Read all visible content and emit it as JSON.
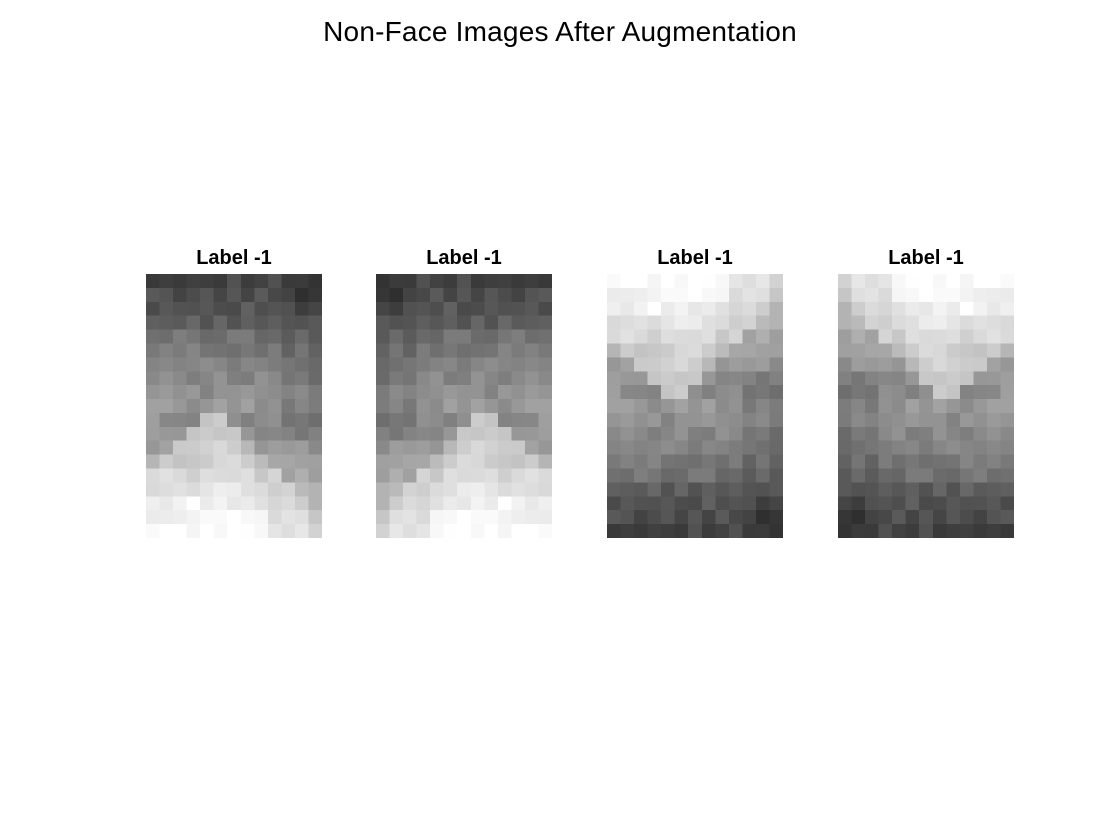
{
  "figure": {
    "title": "Non-Face Images After Augmentation"
  },
  "panels": [
    {
      "title": "Label -1",
      "orientation": "original",
      "grid": {
        "rows": 19,
        "cols": 13
      }
    },
    {
      "title": "Label -1",
      "orientation": "horizontal-flip",
      "grid": {
        "rows": 19,
        "cols": 13
      }
    },
    {
      "title": "Label -1",
      "orientation": "vertical-flip",
      "grid": {
        "rows": 19,
        "cols": 13
      }
    },
    {
      "title": "Label -1",
      "orientation": "rotate-180",
      "grid": {
        "rows": 19,
        "cols": 13
      }
    }
  ],
  "colormap": "gray"
}
